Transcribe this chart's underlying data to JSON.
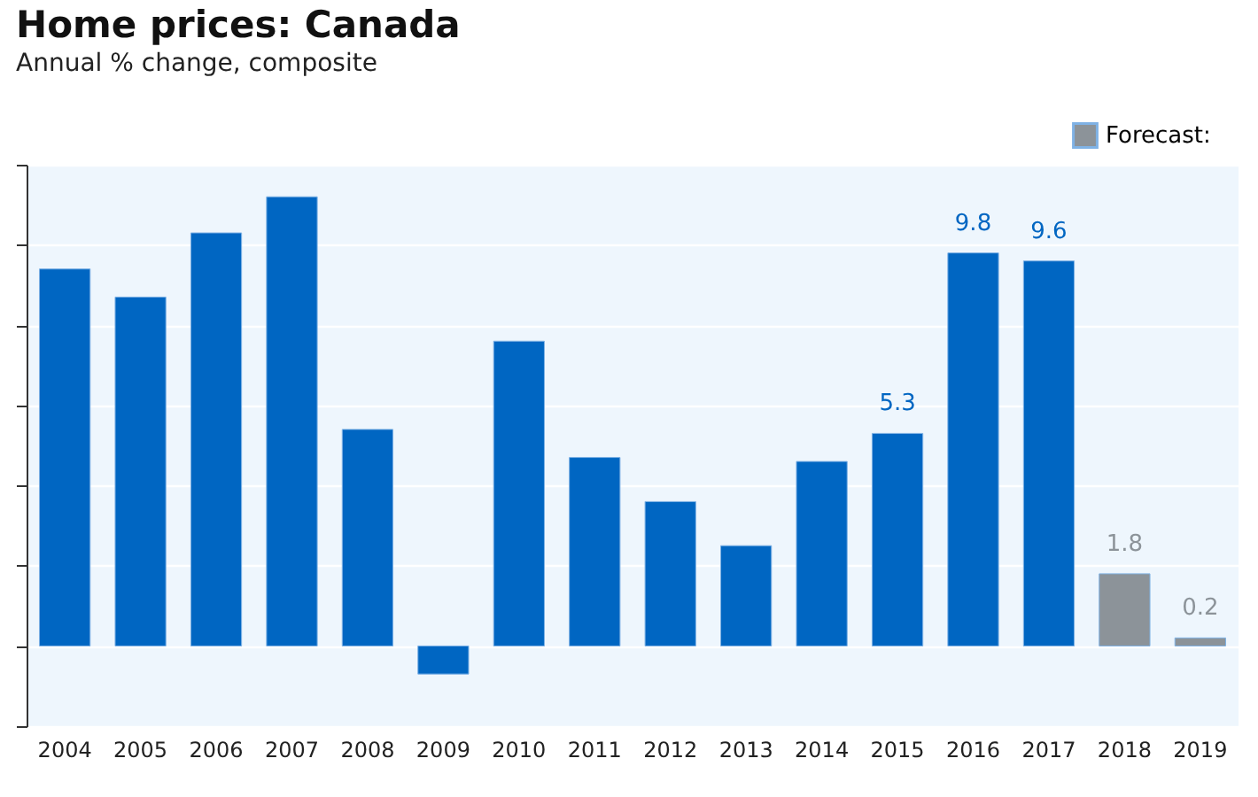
{
  "chart_data": {
    "type": "bar",
    "title": "Home prices: Canada",
    "subtitle": "Annual % change, composite",
    "categories": [
      "2004",
      "2005",
      "2006",
      "2007",
      "2008",
      "2009",
      "2010",
      "2011",
      "2012",
      "2013",
      "2014",
      "2015",
      "2016",
      "2017",
      "2018",
      "2019"
    ],
    "series": [
      {
        "color": "#0066c2",
        "values": [
          9.4,
          8.7,
          10.3,
          11.2,
          5.4,
          -0.7,
          7.6,
          4.7,
          3.6,
          2.5,
          4.6,
          5.3,
          9.8,
          9.6,
          null,
          null
        ],
        "value_labels": [
          null,
          null,
          null,
          null,
          null,
          null,
          null,
          null,
          null,
          null,
          null,
          "5.3",
          "9.8",
          "9.6",
          null,
          null
        ]
      },
      {
        "name": "Forecast:",
        "color": "#8c9399",
        "values": [
          null,
          null,
          null,
          null,
          null,
          null,
          null,
          null,
          null,
          null,
          null,
          null,
          null,
          null,
          1.8,
          0.2
        ],
        "value_labels": [
          null,
          null,
          null,
          null,
          null,
          null,
          null,
          null,
          null,
          null,
          null,
          null,
          null,
          null,
          "1.8",
          "0.2"
        ]
      }
    ],
    "ylim": [
      -2,
      12
    ],
    "yticks": [
      {
        "value": -2,
        "label": null
      },
      {
        "value": 0,
        "label": null
      },
      {
        "value": 2,
        "label": null
      },
      {
        "value": 4,
        "label": null
      },
      {
        "value": 6,
        "label": null
      },
      {
        "value": 8,
        "label": null
      },
      {
        "value": 10,
        "label": null
      },
      {
        "value": 12,
        "label": null
      }
    ],
    "tick_labels": "x",
    "grid": "y",
    "legend": "top right"
  }
}
